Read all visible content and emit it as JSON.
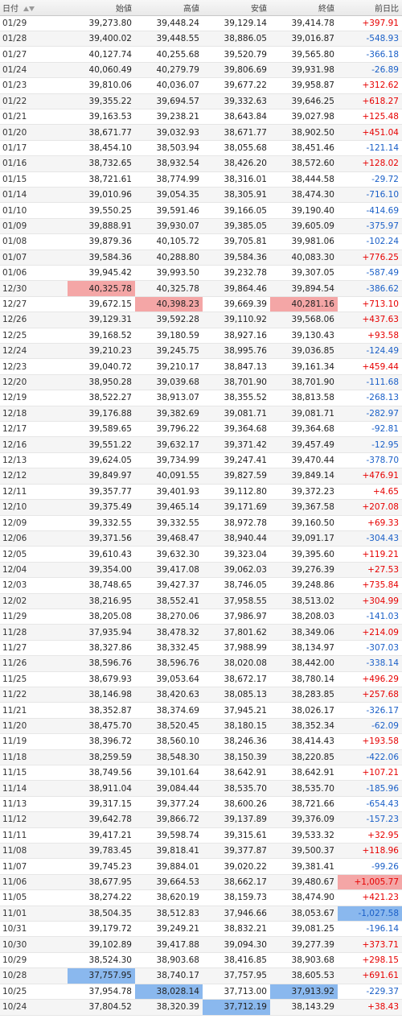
{
  "table": {
    "headers": {
      "date": "日付",
      "open": "始値",
      "high": "高値",
      "low": "安値",
      "close": "終値",
      "change": "前日比"
    },
    "sort_icon": "sort-up-down-icon",
    "colors": {
      "positive": "#e60000",
      "negative": "#1a5fc7",
      "highlight_max": "#f4a6a6",
      "highlight_min": "#8ab8ee"
    },
    "highlights": {
      "max_open_row": "12/30",
      "max_high_row": "12/27",
      "max_close_row": "12/27",
      "max_change_row": "11/06",
      "min_change_row": "11/01",
      "min_open_row": "10/28",
      "min_high_row": "10/25",
      "min_close_row": "10/25",
      "min_low_row": "10/24"
    },
    "rows": [
      [
        "01/29",
        "39,273.80",
        "39,448.24",
        "39,129.14",
        "39,414.78",
        "+397.91"
      ],
      [
        "01/28",
        "39,400.02",
        "39,448.55",
        "38,886.05",
        "39,016.87",
        "-548.93"
      ],
      [
        "01/27",
        "40,127.74",
        "40,255.68",
        "39,520.79",
        "39,565.80",
        "-366.18"
      ],
      [
        "01/24",
        "40,060.49",
        "40,279.79",
        "39,806.69",
        "39,931.98",
        "-26.89"
      ],
      [
        "01/23",
        "39,810.06",
        "40,036.07",
        "39,677.22",
        "39,958.87",
        "+312.62"
      ],
      [
        "01/22",
        "39,355.22",
        "39,694.57",
        "39,332.63",
        "39,646.25",
        "+618.27"
      ],
      [
        "01/21",
        "39,163.53",
        "39,238.21",
        "38,643.84",
        "39,027.98",
        "+125.48"
      ],
      [
        "01/20",
        "38,671.77",
        "39,032.93",
        "38,671.77",
        "38,902.50",
        "+451.04"
      ],
      [
        "01/17",
        "38,454.10",
        "38,503.94",
        "38,055.68",
        "38,451.46",
        "-121.14"
      ],
      [
        "01/16",
        "38,732.65",
        "38,932.54",
        "38,426.20",
        "38,572.60",
        "+128.02"
      ],
      [
        "01/15",
        "38,721.61",
        "38,774.99",
        "38,316.01",
        "38,444.58",
        "-29.72"
      ],
      [
        "01/14",
        "39,010.96",
        "39,054.35",
        "38,305.91",
        "38,474.30",
        "-716.10"
      ],
      [
        "01/10",
        "39,550.25",
        "39,591.46",
        "39,166.05",
        "39,190.40",
        "-414.69"
      ],
      [
        "01/09",
        "39,888.91",
        "39,930.07",
        "39,385.05",
        "39,605.09",
        "-375.97"
      ],
      [
        "01/08",
        "39,879.36",
        "40,105.72",
        "39,705.81",
        "39,981.06",
        "-102.24"
      ],
      [
        "01/07",
        "39,584.36",
        "40,288.80",
        "39,584.36",
        "40,083.30",
        "+776.25"
      ],
      [
        "01/06",
        "39,945.42",
        "39,993.50",
        "39,232.78",
        "39,307.05",
        "-587.49"
      ],
      [
        "12/30",
        "40,325.78",
        "40,325.78",
        "39,864.46",
        "39,894.54",
        "-386.62"
      ],
      [
        "12/27",
        "39,672.15",
        "40,398.23",
        "39,669.39",
        "40,281.16",
        "+713.10"
      ],
      [
        "12/26",
        "39,129.31",
        "39,592.28",
        "39,110.92",
        "39,568.06",
        "+437.63"
      ],
      [
        "12/25",
        "39,168.52",
        "39,180.59",
        "38,927.16",
        "39,130.43",
        "+93.58"
      ],
      [
        "12/24",
        "39,210.23",
        "39,245.75",
        "38,995.76",
        "39,036.85",
        "-124.49"
      ],
      [
        "12/23",
        "39,040.72",
        "39,210.17",
        "38,847.13",
        "39,161.34",
        "+459.44"
      ],
      [
        "12/20",
        "38,950.28",
        "39,039.68",
        "38,701.90",
        "38,701.90",
        "-111.68"
      ],
      [
        "12/19",
        "38,522.27",
        "38,913.07",
        "38,355.52",
        "38,813.58",
        "-268.13"
      ],
      [
        "12/18",
        "39,176.88",
        "39,382.69",
        "39,081.71",
        "39,081.71",
        "-282.97"
      ],
      [
        "12/17",
        "39,589.65",
        "39,796.22",
        "39,364.68",
        "39,364.68",
        "-92.81"
      ],
      [
        "12/16",
        "39,551.22",
        "39,632.17",
        "39,371.42",
        "39,457.49",
        "-12.95"
      ],
      [
        "12/13",
        "39,624.05",
        "39,734.99",
        "39,247.41",
        "39,470.44",
        "-378.70"
      ],
      [
        "12/12",
        "39,849.97",
        "40,091.55",
        "39,827.59",
        "39,849.14",
        "+476.91"
      ],
      [
        "12/11",
        "39,357.77",
        "39,401.93",
        "39,112.80",
        "39,372.23",
        "+4.65"
      ],
      [
        "12/10",
        "39,375.49",
        "39,465.14",
        "39,171.69",
        "39,367.58",
        "+207.08"
      ],
      [
        "12/09",
        "39,332.55",
        "39,332.55",
        "38,972.78",
        "39,160.50",
        "+69.33"
      ],
      [
        "12/06",
        "39,371.56",
        "39,468.47",
        "38,940.44",
        "39,091.17",
        "-304.43"
      ],
      [
        "12/05",
        "39,610.43",
        "39,632.30",
        "39,323.04",
        "39,395.60",
        "+119.21"
      ],
      [
        "12/04",
        "39,354.00",
        "39,417.08",
        "39,062.03",
        "39,276.39",
        "+27.53"
      ],
      [
        "12/03",
        "38,748.65",
        "39,427.37",
        "38,746.05",
        "39,248.86",
        "+735.84"
      ],
      [
        "12/02",
        "38,216.95",
        "38,552.41",
        "37,958.55",
        "38,513.02",
        "+304.99"
      ],
      [
        "11/29",
        "38,205.08",
        "38,270.06",
        "37,986.97",
        "38,208.03",
        "-141.03"
      ],
      [
        "11/28",
        "37,935.94",
        "38,478.32",
        "37,801.62",
        "38,349.06",
        "+214.09"
      ],
      [
        "11/27",
        "38,327.86",
        "38,332.45",
        "37,988.99",
        "38,134.97",
        "-307.03"
      ],
      [
        "11/26",
        "38,596.76",
        "38,596.76",
        "38,020.08",
        "38,442.00",
        "-338.14"
      ],
      [
        "11/25",
        "38,679.93",
        "39,053.64",
        "38,672.17",
        "38,780.14",
        "+496.29"
      ],
      [
        "11/22",
        "38,146.98",
        "38,420.63",
        "38,085.13",
        "38,283.85",
        "+257.68"
      ],
      [
        "11/21",
        "38,352.87",
        "38,374.69",
        "37,945.21",
        "38,026.17",
        "-326.17"
      ],
      [
        "11/20",
        "38,475.70",
        "38,520.45",
        "38,180.15",
        "38,352.34",
        "-62.09"
      ],
      [
        "11/19",
        "38,396.72",
        "38,560.10",
        "38,246.36",
        "38,414.43",
        "+193.58"
      ],
      [
        "11/18",
        "38,259.59",
        "38,548.30",
        "38,150.39",
        "38,220.85",
        "-422.06"
      ],
      [
        "11/15",
        "38,749.56",
        "39,101.64",
        "38,642.91",
        "38,642.91",
        "+107.21"
      ],
      [
        "11/14",
        "38,911.04",
        "39,084.44",
        "38,535.70",
        "38,535.70",
        "-185.96"
      ],
      [
        "11/13",
        "39,317.15",
        "39,377.24",
        "38,600.26",
        "38,721.66",
        "-654.43"
      ],
      [
        "11/12",
        "39,642.78",
        "39,866.72",
        "39,137.89",
        "39,376.09",
        "-157.23"
      ],
      [
        "11/11",
        "39,417.21",
        "39,598.74",
        "39,315.61",
        "39,533.32",
        "+32.95"
      ],
      [
        "11/08",
        "39,783.45",
        "39,818.41",
        "39,377.87",
        "39,500.37",
        "+118.96"
      ],
      [
        "11/07",
        "39,745.23",
        "39,884.01",
        "39,020.22",
        "39,381.41",
        "-99.26"
      ],
      [
        "11/06",
        "38,677.95",
        "39,664.53",
        "38,662.17",
        "39,480.67",
        "+1,005.77"
      ],
      [
        "11/05",
        "38,274.22",
        "38,620.19",
        "38,159.73",
        "38,474.90",
        "+421.23"
      ],
      [
        "11/01",
        "38,504.35",
        "38,512.83",
        "37,946.66",
        "38,053.67",
        "-1,027.58"
      ],
      [
        "10/31",
        "39,179.72",
        "39,249.21",
        "38,832.21",
        "39,081.25",
        "-196.14"
      ],
      [
        "10/30",
        "39,102.89",
        "39,417.88",
        "39,094.30",
        "39,277.39",
        "+373.71"
      ],
      [
        "10/29",
        "38,524.30",
        "38,903.68",
        "38,416.85",
        "38,903.68",
        "+298.15"
      ],
      [
        "10/28",
        "37,757.95",
        "38,740.17",
        "37,757.95",
        "38,605.53",
        "+691.61"
      ],
      [
        "10/25",
        "37,954.78",
        "38,028.14",
        "37,713.00",
        "37,913.92",
        "-229.37"
      ],
      [
        "10/24",
        "37,804.52",
        "38,320.39",
        "37,712.19",
        "38,143.29",
        "+38.43"
      ]
    ]
  }
}
